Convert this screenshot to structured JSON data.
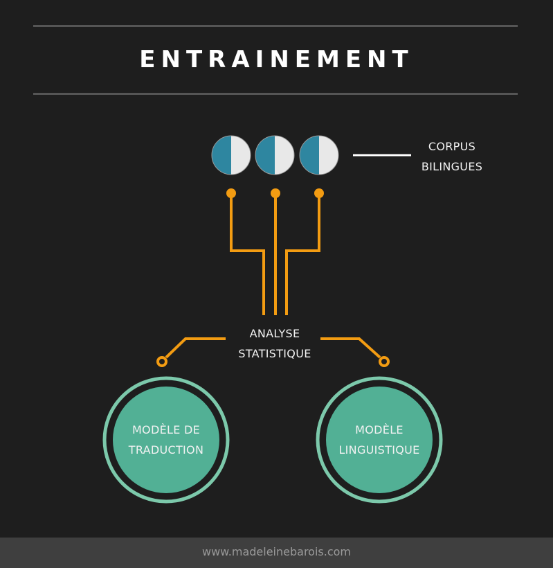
{
  "title": "ENTRAINEMENT",
  "corpus_label": [
    "CORPUS",
    "BILINGUES"
  ],
  "analysis_label": [
    "ANALYSE",
    "STATISTIQUE"
  ],
  "model_translation": [
    "MODÈLE DE",
    "TRADUCTION"
  ],
  "model_language": [
    "MODÈLE",
    "LINGUISTIQUE"
  ],
  "footer": "www.madeleinebarois.com",
  "colors": {
    "background": "#1e1e1e",
    "orange": "#f39c12",
    "teal_dark": "#2e86a0",
    "disc_light": "#e8e8e8",
    "green_fill": "#52b095",
    "green_ring": "#7cc9ab",
    "footer_bg": "#3f3f3f"
  }
}
